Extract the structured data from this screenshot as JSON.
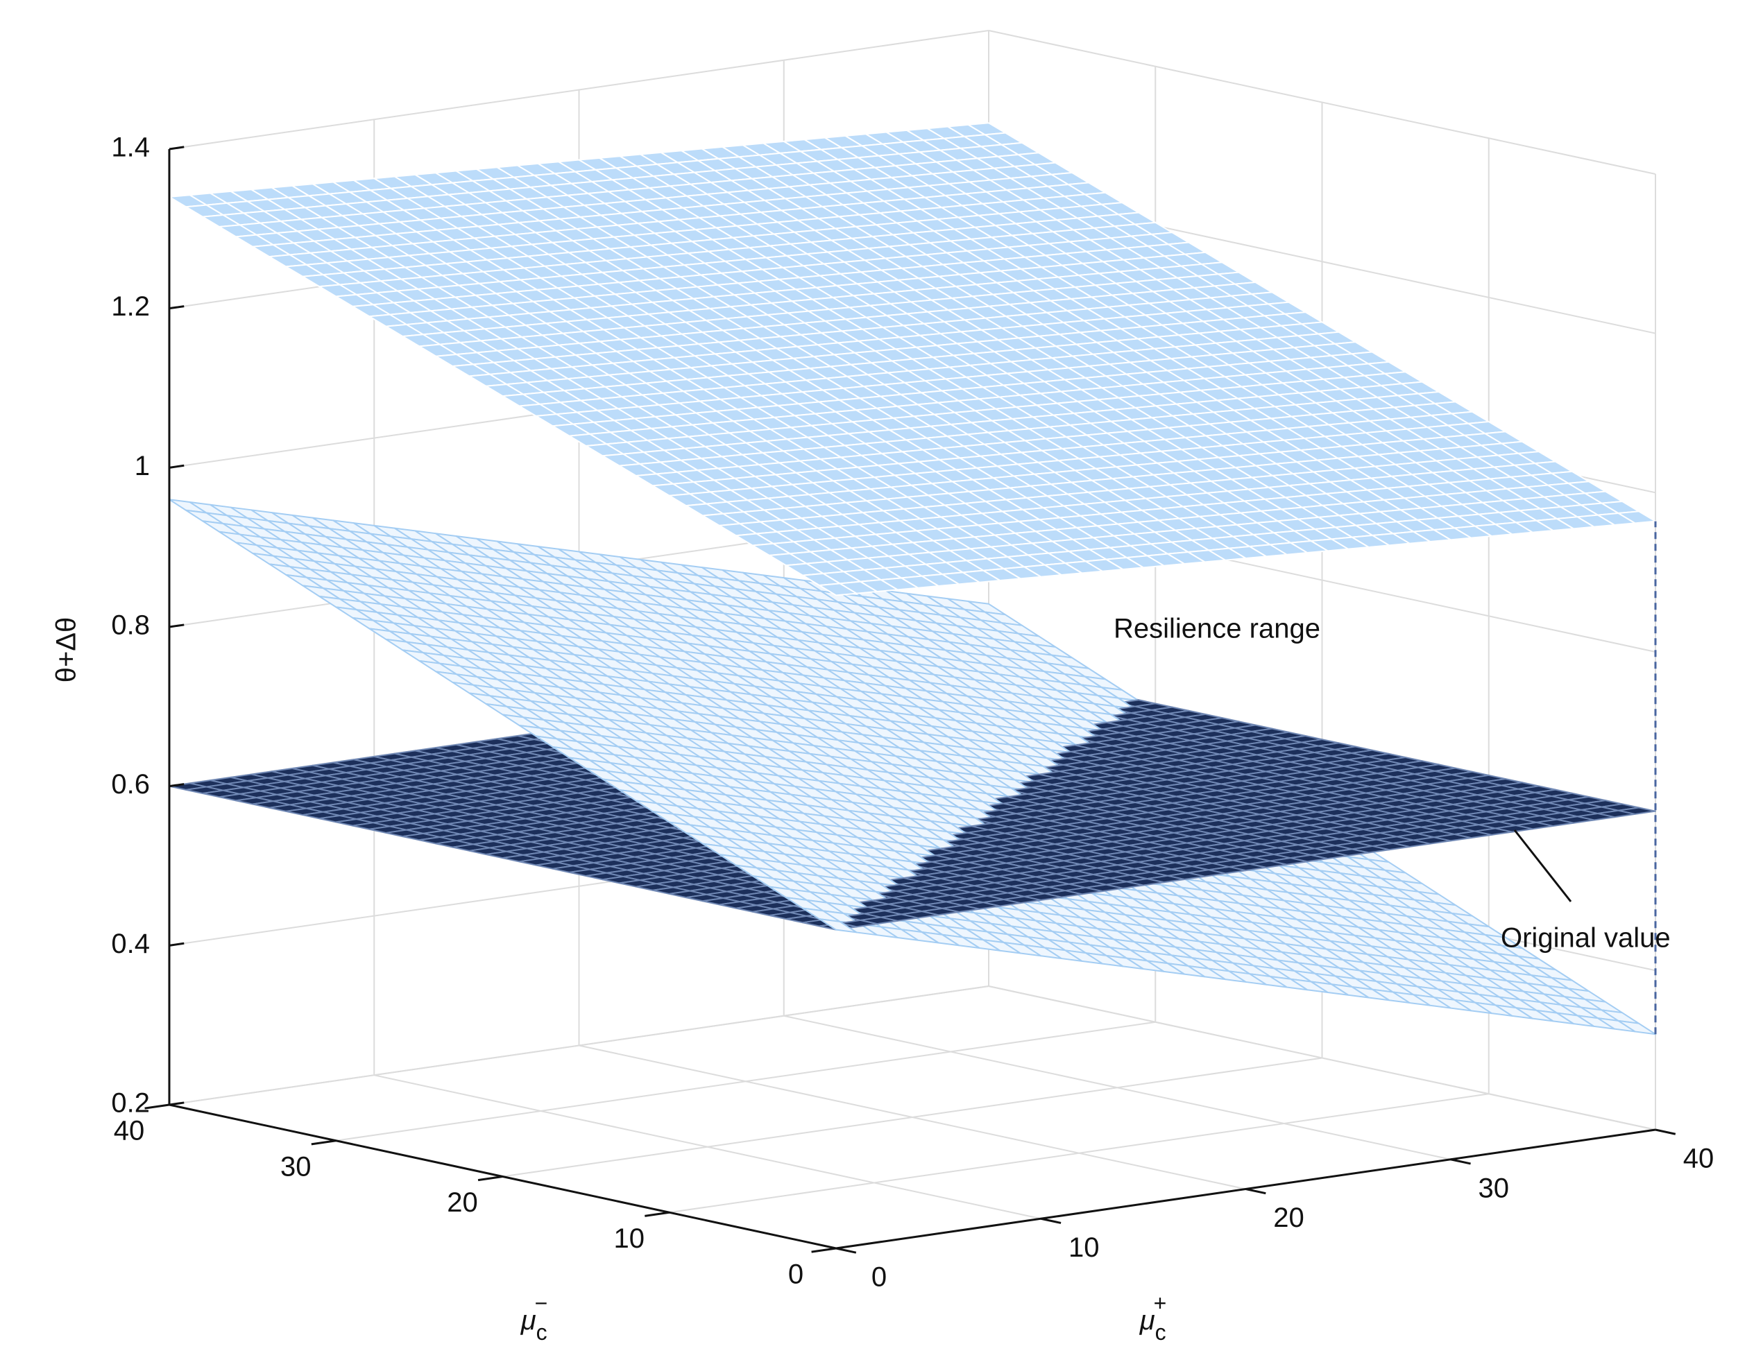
{
  "chart_data": {
    "type": "surface3d",
    "z_label": "θ+Δθ",
    "x_label": {
      "base": "μ",
      "sub": "c",
      "sup": "−"
    },
    "y_label": {
      "base": "μ",
      "sub": "c",
      "sup": "+"
    },
    "x": [
      0,
      5,
      10,
      15,
      20,
      25,
      30,
      35,
      40
    ],
    "y": [
      0,
      5,
      10,
      15,
      20,
      25,
      30,
      35,
      40
    ],
    "xlim": [
      0,
      40
    ],
    "ylim": [
      0,
      40
    ],
    "zlim": [
      0.2,
      1.4
    ],
    "xticks": [
      0,
      10,
      20,
      30,
      40
    ],
    "yticks": [
      0,
      10,
      20,
      30,
      40
    ],
    "zticks": [
      0.2,
      0.4,
      0.6,
      0.8,
      1,
      1.2,
      1.4
    ],
    "grid": true,
    "surfaces": [
      {
        "color": "#bcdcfa",
        "edge_color": "#ffffff",
        "values": [
          [
            1.02,
            1.013,
            1.006,
            0.999,
            0.992,
            0.985,
            0.978,
            0.971,
            0.964
          ],
          [
            1.06,
            1.053,
            1.046,
            1.039,
            1.032,
            1.025,
            1.018,
            1.011,
            1.004
          ],
          [
            1.1,
            1.093,
            1.086,
            1.079,
            1.072,
            1.065,
            1.058,
            1.051,
            1.044
          ],
          [
            1.14,
            1.133,
            1.126,
            1.119,
            1.112,
            1.105,
            1.098,
            1.091,
            1.084
          ],
          [
            1.18,
            1.173,
            1.166,
            1.159,
            1.152,
            1.145,
            1.138,
            1.131,
            1.124
          ],
          [
            1.22,
            1.213,
            1.206,
            1.199,
            1.192,
            1.185,
            1.178,
            1.171,
            1.164
          ],
          [
            1.26,
            1.253,
            1.246,
            1.239,
            1.232,
            1.225,
            1.218,
            1.211,
            1.204
          ],
          [
            1.3,
            1.293,
            1.286,
            1.279,
            1.272,
            1.265,
            1.258,
            1.251,
            1.244
          ],
          [
            1.34,
            1.333,
            1.326,
            1.319,
            1.312,
            1.305,
            1.298,
            1.291,
            1.284
          ]
        ]
      },
      {
        "color": "#eef6fe",
        "edge_color": "#a4cdf3",
        "values": [
          [
            0.6,
            0.565,
            0.53,
            0.495,
            0.46,
            0.425,
            0.39,
            0.355,
            0.32
          ],
          [
            0.645,
            0.61,
            0.575,
            0.54,
            0.505,
            0.47,
            0.435,
            0.4,
            0.365
          ],
          [
            0.69,
            0.655,
            0.62,
            0.585,
            0.55,
            0.515,
            0.48,
            0.445,
            0.41
          ],
          [
            0.735,
            0.7,
            0.665,
            0.63,
            0.595,
            0.56,
            0.525,
            0.49,
            0.455
          ],
          [
            0.78,
            0.745,
            0.71,
            0.675,
            0.64,
            0.605,
            0.57,
            0.535,
            0.5
          ],
          [
            0.825,
            0.79,
            0.755,
            0.72,
            0.685,
            0.65,
            0.615,
            0.58,
            0.545
          ],
          [
            0.87,
            0.835,
            0.8,
            0.765,
            0.73,
            0.695,
            0.66,
            0.625,
            0.59
          ],
          [
            0.915,
            0.88,
            0.845,
            0.81,
            0.775,
            0.74,
            0.705,
            0.67,
            0.635
          ],
          [
            0.96,
            0.925,
            0.89,
            0.855,
            0.82,
            0.785,
            0.75,
            0.715,
            0.68
          ]
        ]
      },
      {
        "color": "#1c2f5a",
        "edge_color": "#7088b4",
        "values": [
          [
            0.6,
            0.6,
            0.6,
            0.6,
            0.6,
            0.6,
            0.6,
            0.6,
            0.6
          ],
          [
            0.6,
            0.6,
            0.6,
            0.6,
            0.6,
            0.6,
            0.6,
            0.6,
            0.6
          ],
          [
            0.6,
            0.6,
            0.6,
            0.6,
            0.6,
            0.6,
            0.6,
            0.6,
            0.6
          ],
          [
            0.6,
            0.6,
            0.6,
            0.6,
            0.6,
            0.6,
            0.6,
            0.6,
            0.6
          ],
          [
            0.6,
            0.6,
            0.6,
            0.6,
            0.6,
            0.6,
            0.6,
            0.6,
            0.6
          ],
          [
            0.6,
            0.6,
            0.6,
            0.6,
            0.6,
            0.6,
            0.6,
            0.6,
            0.6
          ],
          [
            0.6,
            0.6,
            0.6,
            0.6,
            0.6,
            0.6,
            0.6,
            0.6,
            0.6
          ],
          [
            0.6,
            0.6,
            0.6,
            0.6,
            0.6,
            0.6,
            0.6,
            0.6,
            0.6
          ],
          [
            0.6,
            0.6,
            0.6,
            0.6,
            0.6,
            0.6,
            0.6,
            0.6,
            0.6
          ]
        ]
      }
    ],
    "annotations": [
      {
        "text": "Resilience range"
      },
      {
        "text": "Original value"
      }
    ]
  }
}
